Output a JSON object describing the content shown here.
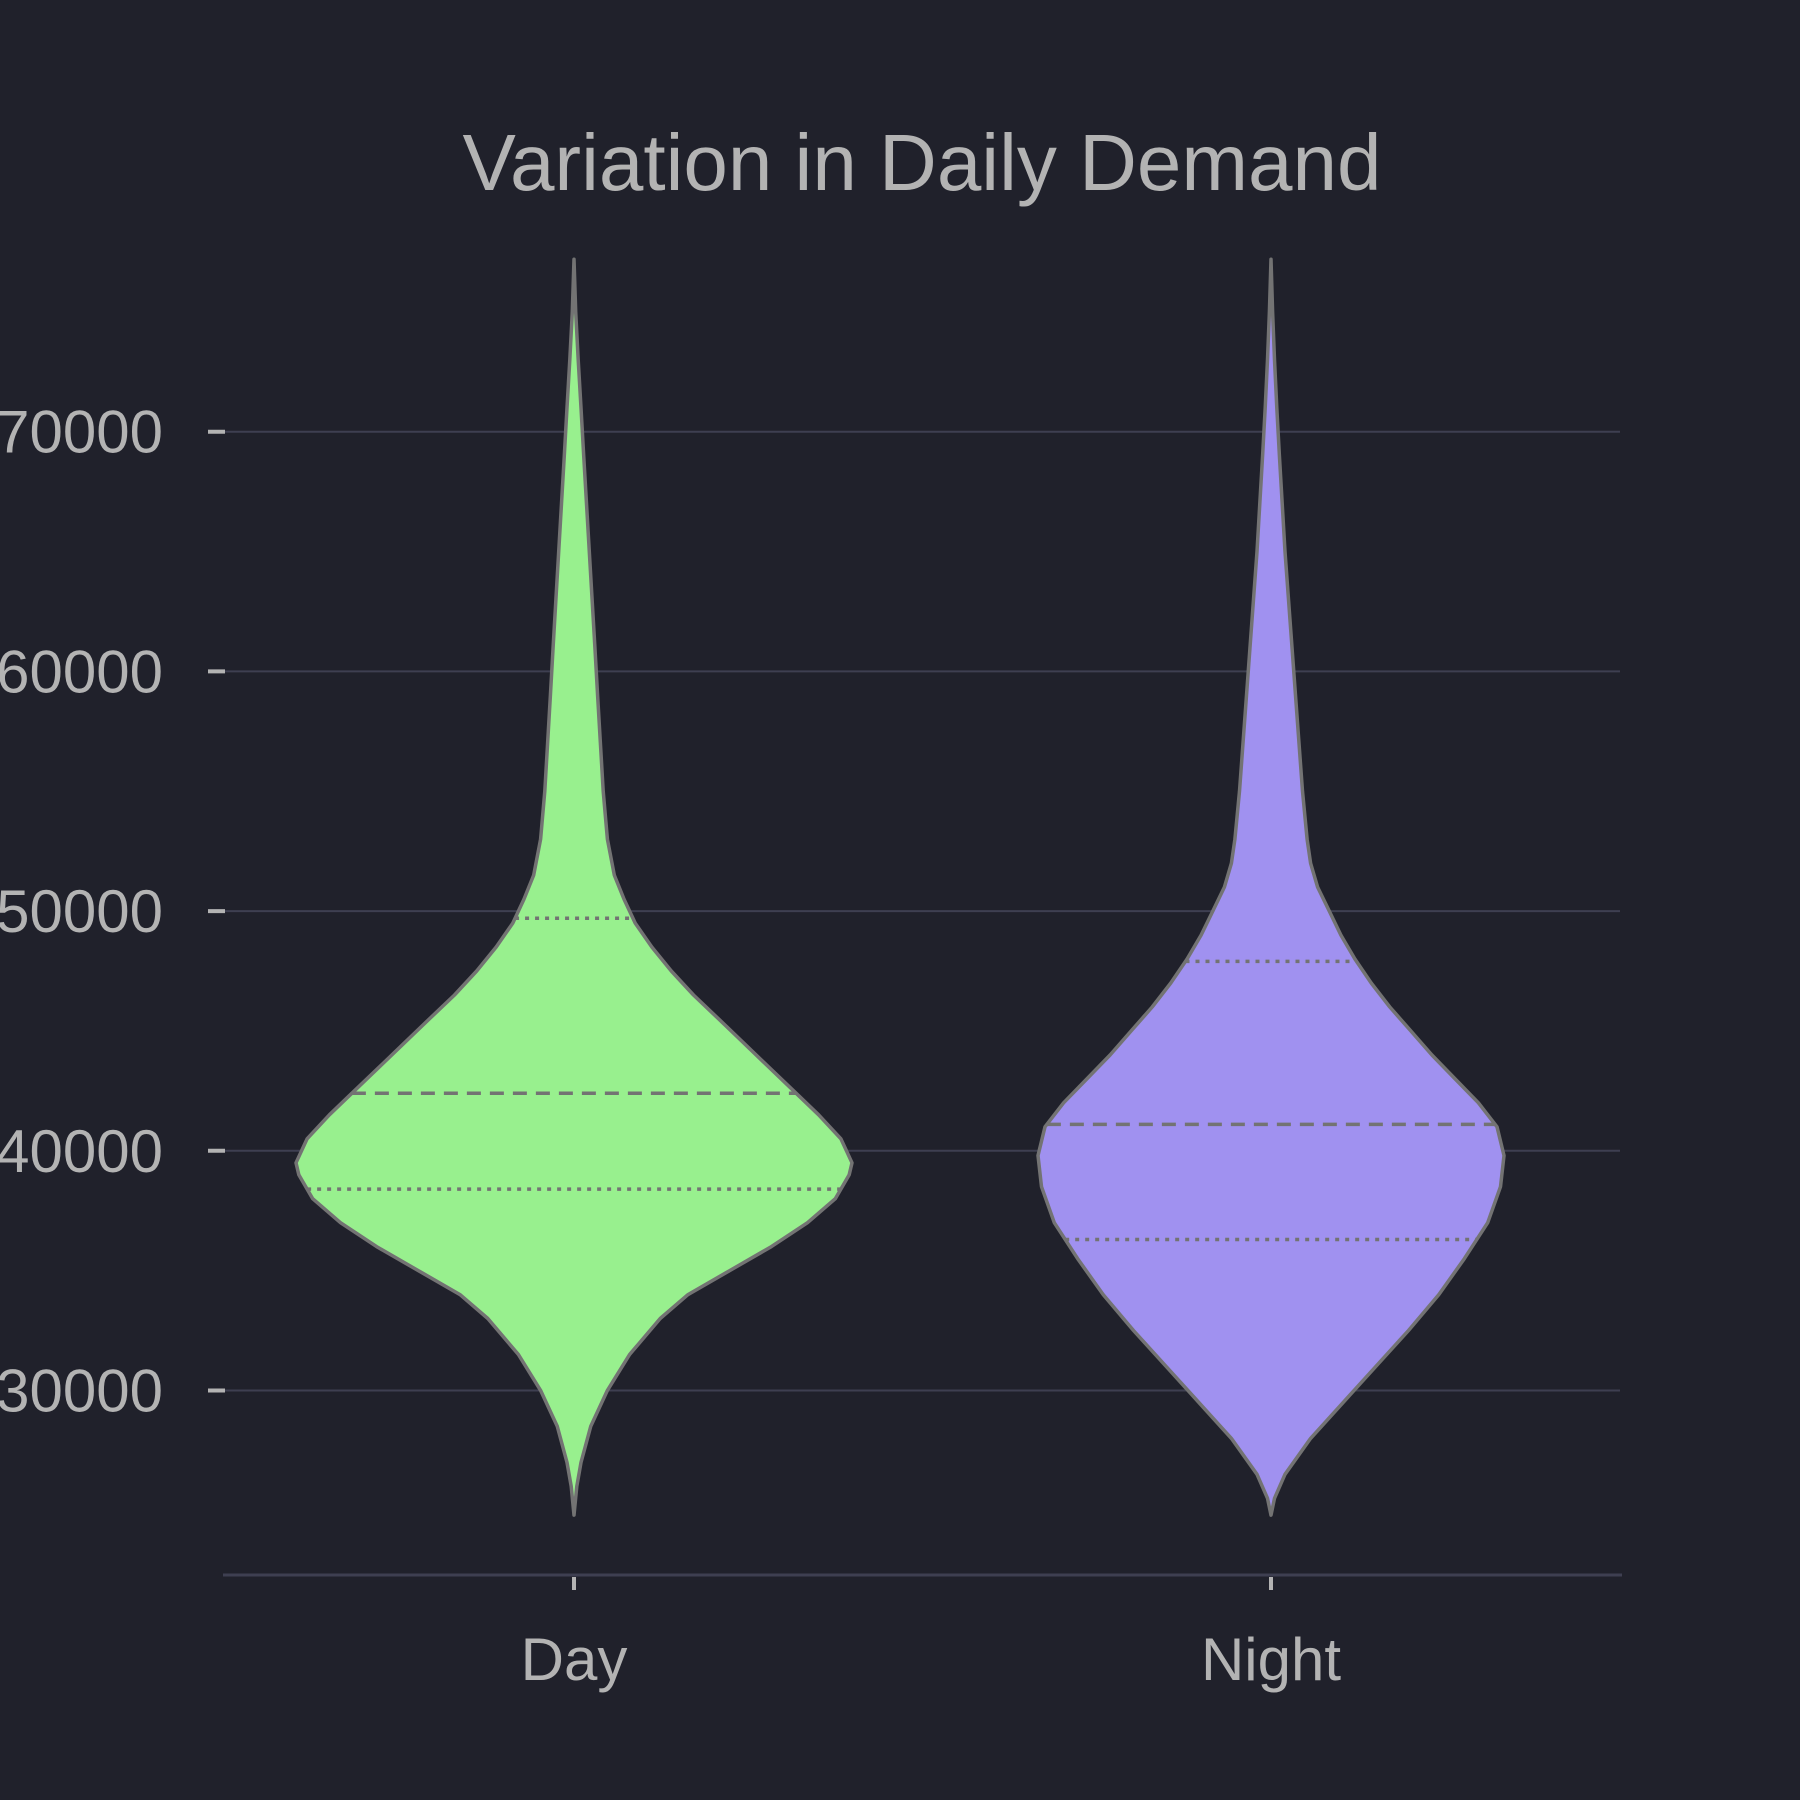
{
  "chart_data": {
    "type": "violin",
    "title": "Variation in Daily Demand",
    "xlabel": "",
    "ylabel": "",
    "categories": [
      "Day",
      "Night"
    ],
    "ylim": [
      22300,
      78500
    ],
    "yticks": [
      30000,
      40000,
      50000,
      60000,
      70000
    ],
    "ytick_labels": [
      "30000",
      "40000",
      "50000",
      "60000",
      "70000"
    ],
    "grid": true,
    "legend": "none",
    "series": [
      {
        "category": "Day",
        "color": "#98f08e",
        "q1": 38400,
        "median": 42400,
        "q3": 49700,
        "range": [
          24800,
          77200
        ],
        "profile": [
          [
            24800,
            0.0
          ],
          [
            26000,
            0.01
          ],
          [
            27000,
            0.025
          ],
          [
            28500,
            0.06
          ],
          [
            30000,
            0.12
          ],
          [
            31500,
            0.2
          ],
          [
            33000,
            0.31
          ],
          [
            34000,
            0.41
          ],
          [
            35000,
            0.56
          ],
          [
            36000,
            0.71
          ],
          [
            37000,
            0.84
          ],
          [
            38000,
            0.94
          ],
          [
            39000,
            0.99
          ],
          [
            39500,
            1.0
          ],
          [
            40500,
            0.96
          ],
          [
            41500,
            0.88
          ],
          [
            42500,
            0.79
          ],
          [
            43500,
            0.7
          ],
          [
            44500,
            0.61
          ],
          [
            45500,
            0.52
          ],
          [
            46500,
            0.43
          ],
          [
            47500,
            0.35
          ],
          [
            48500,
            0.28
          ],
          [
            49500,
            0.22
          ],
          [
            50500,
            0.18
          ],
          [
            51500,
            0.145
          ],
          [
            53000,
            0.12
          ],
          [
            55000,
            0.105
          ],
          [
            57000,
            0.095
          ],
          [
            59000,
            0.085
          ],
          [
            61000,
            0.075
          ],
          [
            63000,
            0.065
          ],
          [
            65000,
            0.055
          ],
          [
            67000,
            0.045
          ],
          [
            69000,
            0.035
          ],
          [
            71000,
            0.025
          ],
          [
            73000,
            0.015
          ],
          [
            75000,
            0.006
          ],
          [
            77200,
            0.0
          ]
        ]
      },
      {
        "category": "Night",
        "color": "#a091f0",
        "q1": 36300,
        "median": 41100,
        "q3": 47900,
        "range": [
          24800,
          77200
        ],
        "profile": [
          [
            24800,
            0.0
          ],
          [
            25500,
            0.015
          ],
          [
            26500,
            0.06
          ],
          [
            28000,
            0.17
          ],
          [
            29500,
            0.31
          ],
          [
            31000,
            0.45
          ],
          [
            32500,
            0.59
          ],
          [
            34000,
            0.72
          ],
          [
            35500,
            0.83
          ],
          [
            37000,
            0.93
          ],
          [
            38500,
            0.985
          ],
          [
            39800,
            1.0
          ],
          [
            41000,
            0.97
          ],
          [
            42000,
            0.89
          ],
          [
            43000,
            0.79
          ],
          [
            44000,
            0.69
          ],
          [
            45000,
            0.6
          ],
          [
            46000,
            0.51
          ],
          [
            47000,
            0.43
          ],
          [
            48000,
            0.36
          ],
          [
            49000,
            0.3
          ],
          [
            50000,
            0.25
          ],
          [
            51000,
            0.2
          ],
          [
            52000,
            0.17
          ],
          [
            53000,
            0.155
          ],
          [
            55000,
            0.135
          ],
          [
            57000,
            0.12
          ],
          [
            59000,
            0.105
          ],
          [
            61000,
            0.09
          ],
          [
            63000,
            0.075
          ],
          [
            65000,
            0.06
          ],
          [
            67000,
            0.048
          ],
          [
            69000,
            0.036
          ],
          [
            71000,
            0.025
          ],
          [
            73000,
            0.015
          ],
          [
            75000,
            0.007
          ],
          [
            77200,
            0.0
          ]
        ]
      }
    ]
  }
}
